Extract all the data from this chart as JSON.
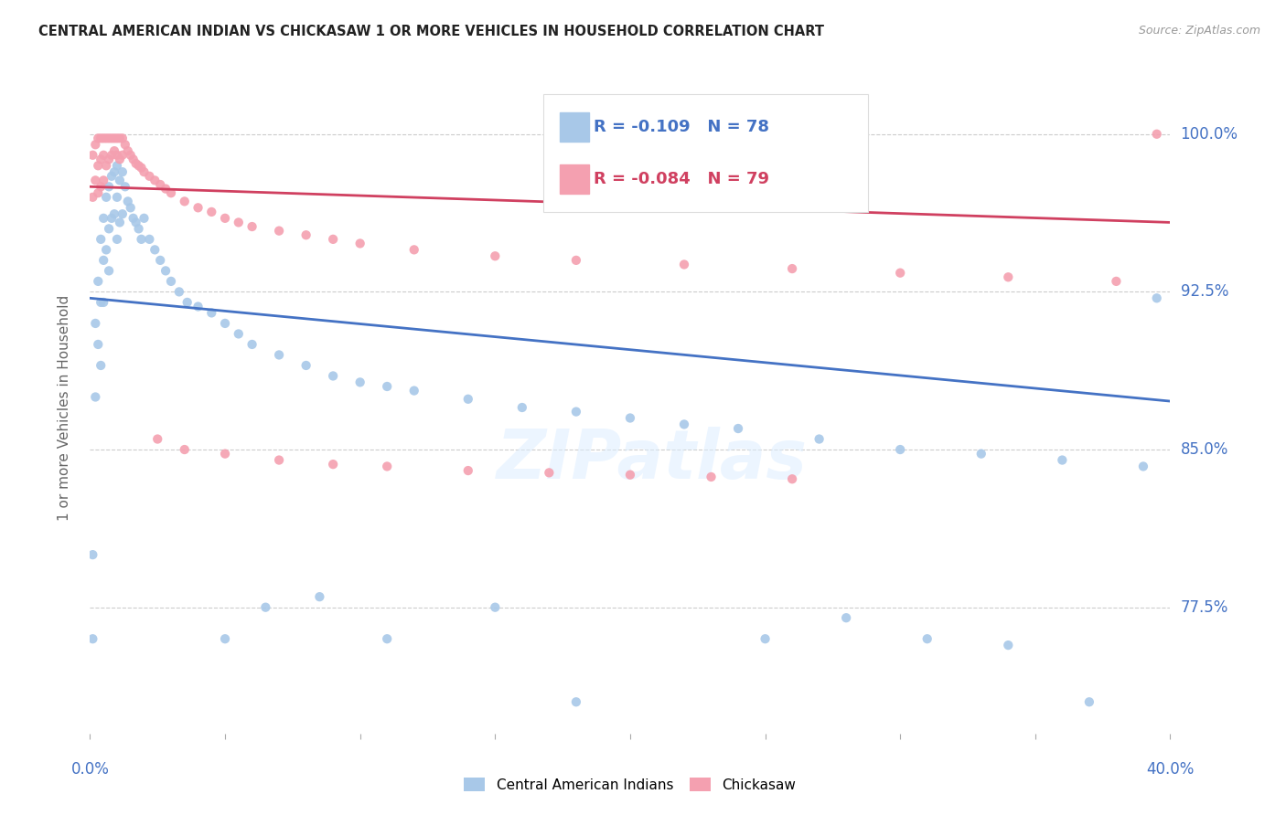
{
  "title": "CENTRAL AMERICAN INDIAN VS CHICKASAW 1 OR MORE VEHICLES IN HOUSEHOLD CORRELATION CHART",
  "source": "Source: ZipAtlas.com",
  "ylabel": "1 or more Vehicles in Household",
  "ytick_values": [
    1.0,
    0.925,
    0.85,
    0.775
  ],
  "ytick_labels": [
    "100.0%",
    "92.5%",
    "85.0%",
    "77.5%"
  ],
  "xmin": 0.0,
  "xmax": 0.4,
  "ymin": 0.715,
  "ymax": 1.025,
  "watermark": "ZIPatlas",
  "legend_blue_r": "-0.109",
  "legend_blue_n": "78",
  "legend_pink_r": "-0.084",
  "legend_pink_n": "79",
  "blue_color": "#a8c8e8",
  "blue_line_color": "#4472c4",
  "pink_color": "#f4a0b0",
  "pink_line_color": "#d04060",
  "blue_trend_x": [
    0.0,
    0.4
  ],
  "blue_trend_y": [
    0.922,
    0.873
  ],
  "pink_trend_x": [
    0.0,
    0.4
  ],
  "pink_trend_y": [
    0.975,
    0.958
  ],
  "blue_x": [
    0.001,
    0.001,
    0.002,
    0.002,
    0.003,
    0.003,
    0.004,
    0.004,
    0.004,
    0.005,
    0.005,
    0.005,
    0.006,
    0.006,
    0.007,
    0.007,
    0.007,
    0.008,
    0.008,
    0.009,
    0.009,
    0.01,
    0.01,
    0.01,
    0.011,
    0.011,
    0.012,
    0.012,
    0.013,
    0.014,
    0.015,
    0.016,
    0.017,
    0.018,
    0.019,
    0.02,
    0.022,
    0.024,
    0.026,
    0.028,
    0.03,
    0.033,
    0.036,
    0.04,
    0.045,
    0.05,
    0.055,
    0.06,
    0.07,
    0.08,
    0.09,
    0.1,
    0.11,
    0.12,
    0.14,
    0.16,
    0.18,
    0.2,
    0.22,
    0.24,
    0.27,
    0.3,
    0.33,
    0.36,
    0.39,
    0.05,
    0.065,
    0.085,
    0.11,
    0.15,
    0.18,
    0.25,
    0.28,
    0.31,
    0.34,
    0.37,
    0.395
  ],
  "blue_y": [
    0.8,
    0.76,
    0.91,
    0.875,
    0.93,
    0.9,
    0.95,
    0.92,
    0.89,
    0.96,
    0.94,
    0.92,
    0.97,
    0.945,
    0.975,
    0.955,
    0.935,
    0.98,
    0.96,
    0.982,
    0.962,
    0.985,
    0.97,
    0.95,
    0.978,
    0.958,
    0.982,
    0.962,
    0.975,
    0.968,
    0.965,
    0.96,
    0.958,
    0.955,
    0.95,
    0.96,
    0.95,
    0.945,
    0.94,
    0.935,
    0.93,
    0.925,
    0.92,
    0.918,
    0.915,
    0.91,
    0.905,
    0.9,
    0.895,
    0.89,
    0.885,
    0.882,
    0.88,
    0.878,
    0.874,
    0.87,
    0.868,
    0.865,
    0.862,
    0.86,
    0.855,
    0.85,
    0.848,
    0.845,
    0.842,
    0.76,
    0.775,
    0.78,
    0.76,
    0.775,
    0.73,
    0.76,
    0.77,
    0.76,
    0.757,
    0.73,
    0.922
  ],
  "pink_x": [
    0.001,
    0.001,
    0.002,
    0.002,
    0.003,
    0.003,
    0.003,
    0.004,
    0.004,
    0.004,
    0.005,
    0.005,
    0.005,
    0.006,
    0.006,
    0.007,
    0.007,
    0.008,
    0.008,
    0.009,
    0.009,
    0.01,
    0.01,
    0.011,
    0.011,
    0.012,
    0.012,
    0.013,
    0.014,
    0.015,
    0.016,
    0.017,
    0.018,
    0.019,
    0.02,
    0.022,
    0.024,
    0.026,
    0.028,
    0.03,
    0.035,
    0.04,
    0.045,
    0.05,
    0.055,
    0.06,
    0.07,
    0.08,
    0.09,
    0.1,
    0.12,
    0.15,
    0.18,
    0.22,
    0.26,
    0.3,
    0.34,
    0.38,
    0.395,
    0.025,
    0.035,
    0.05,
    0.07,
    0.09,
    0.11,
    0.14,
    0.17,
    0.2,
    0.23,
    0.26
  ],
  "pink_y": [
    0.99,
    0.97,
    0.995,
    0.978,
    0.998,
    0.985,
    0.972,
    0.998,
    0.988,
    0.975,
    0.998,
    0.99,
    0.978,
    0.998,
    0.985,
    0.998,
    0.988,
    0.998,
    0.99,
    0.998,
    0.992,
    0.998,
    0.99,
    0.998,
    0.988,
    0.998,
    0.99,
    0.995,
    0.992,
    0.99,
    0.988,
    0.986,
    0.985,
    0.984,
    0.982,
    0.98,
    0.978,
    0.976,
    0.974,
    0.972,
    0.968,
    0.965,
    0.963,
    0.96,
    0.958,
    0.956,
    0.954,
    0.952,
    0.95,
    0.948,
    0.945,
    0.942,
    0.94,
    0.938,
    0.936,
    0.934,
    0.932,
    0.93,
    1.0,
    0.855,
    0.85,
    0.848,
    0.845,
    0.843,
    0.842,
    0.84,
    0.839,
    0.838,
    0.837,
    0.836
  ]
}
